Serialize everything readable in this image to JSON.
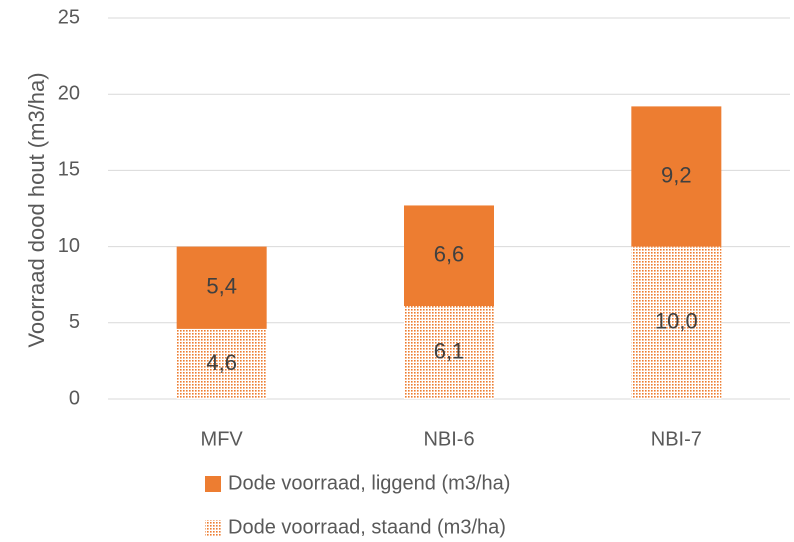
{
  "chart_data": {
    "type": "bar",
    "stacked": true,
    "y_label": "Voorraad dood hout (m3/ha)",
    "categories": [
      "MFV",
      "NBI-6",
      "NBI-7"
    ],
    "series": [
      {
        "name": "Dode voorraad, staand (m3/ha)",
        "color": "#ed7d31",
        "fill": "dotted",
        "values": [
          4.6,
          6.1,
          10.0
        ],
        "value_labels": [
          "4,6",
          "6,1",
          "10,0"
        ]
      },
      {
        "name": "Dode voorraad, liggend (m3/ha)",
        "color": "#ed7d31",
        "fill": "solid",
        "values": [
          5.4,
          6.6,
          9.2
        ],
        "value_labels": [
          "5,4",
          "6,6",
          "9,2"
        ]
      }
    ],
    "ylim": [
      0,
      25
    ],
    "yticks": [
      0,
      5,
      10,
      15,
      20,
      25
    ],
    "grid": true,
    "legend": "bottom"
  }
}
